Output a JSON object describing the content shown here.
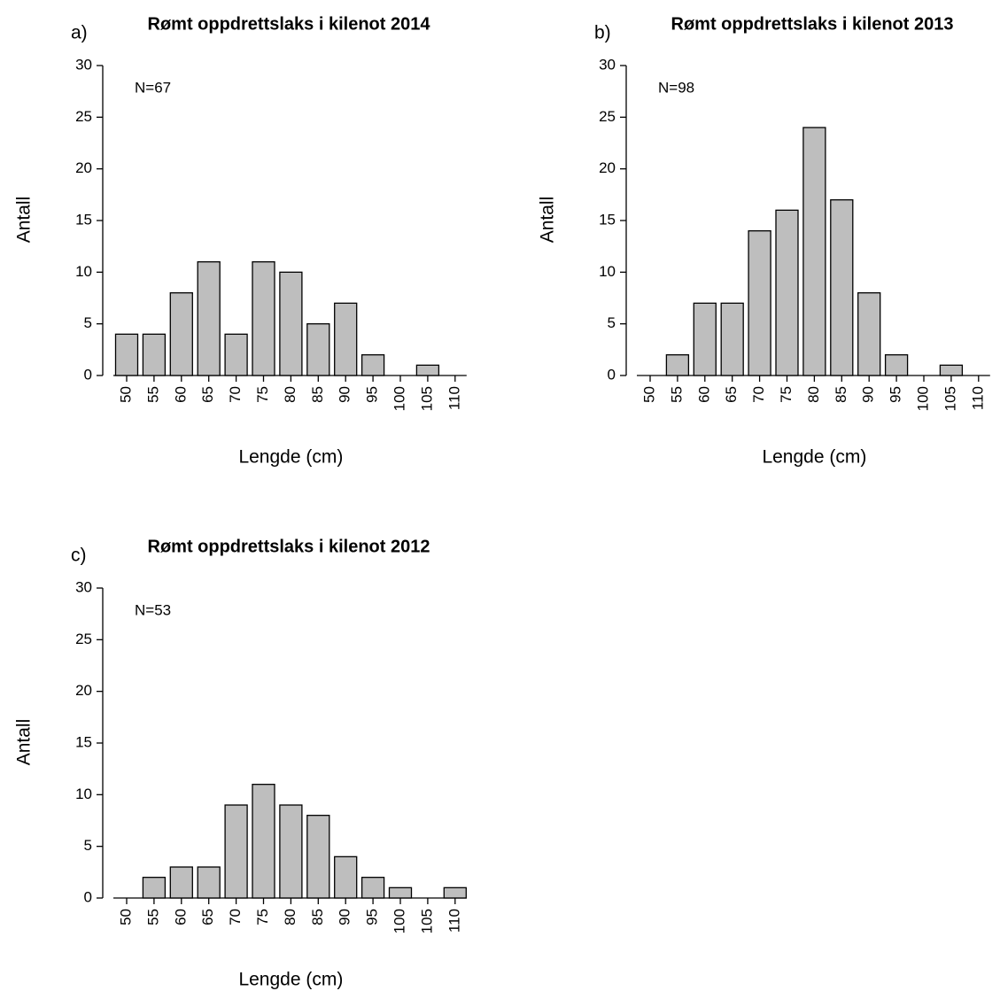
{
  "chart_data": [
    {
      "type": "bar",
      "panel_label": "a)",
      "title": "Rømt oppdrettslaks i kilenot 2014",
      "annotation": "N=67",
      "xlabel": "Lengde (cm)",
      "ylabel": "Antall",
      "categories": [
        "50",
        "55",
        "60",
        "65",
        "70",
        "75",
        "80",
        "85",
        "90",
        "95",
        "100",
        "105",
        "110"
      ],
      "values": [
        4,
        4,
        8,
        11,
        4,
        11,
        10,
        5,
        7,
        2,
        0,
        1,
        0
      ],
      "color": "#bebebe",
      "ylim": [
        0,
        30
      ],
      "yticks": [
        0,
        5,
        10,
        15,
        20,
        25,
        30
      ]
    },
    {
      "type": "bar",
      "panel_label": "b)",
      "title": "Rømt oppdrettslaks i kilenot 2013",
      "annotation": "N=98",
      "xlabel": "Lengde (cm)",
      "ylabel": "Antall",
      "categories": [
        "50",
        "55",
        "60",
        "65",
        "70",
        "75",
        "80",
        "85",
        "90",
        "95",
        "100",
        "105",
        "110"
      ],
      "values": [
        0,
        2,
        7,
        7,
        14,
        16,
        24,
        17,
        8,
        2,
        0,
        1,
        0
      ],
      "color": "#bebebe",
      "ylim": [
        0,
        30
      ],
      "yticks": [
        0,
        5,
        10,
        15,
        20,
        25,
        30
      ]
    },
    {
      "type": "bar",
      "panel_label": "c)",
      "title": "Rømt oppdrettslaks i kilenot 2012",
      "annotation": "N=53",
      "xlabel": "Lengde (cm)",
      "ylabel": "Antall",
      "categories": [
        "50",
        "55",
        "60",
        "65",
        "70",
        "75",
        "80",
        "85",
        "90",
        "95",
        "100",
        "105",
        "110"
      ],
      "values": [
        0,
        2,
        3,
        3,
        9,
        11,
        9,
        8,
        4,
        2,
        1,
        0,
        1
      ],
      "color": "#bebebe",
      "ylim": [
        0,
        30
      ],
      "yticks": [
        0,
        5,
        10,
        15,
        20,
        25,
        30
      ]
    }
  ]
}
